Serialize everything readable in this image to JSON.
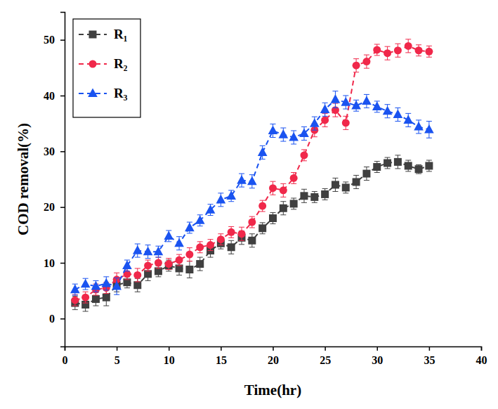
{
  "chart_data": {
    "type": "line",
    "x_label": "Time(hr)",
    "y_label": "COD removal(%)",
    "x": [
      1,
      2,
      3,
      4,
      5,
      6,
      7,
      8,
      9,
      10,
      11,
      12,
      13,
      14,
      15,
      16,
      17,
      18,
      19,
      20,
      21,
      22,
      23,
      24,
      25,
      26,
      27,
      28,
      29,
      30,
      31,
      32,
      33,
      34,
      35
    ],
    "xlim": [
      0,
      40
    ],
    "xticks": [
      0,
      5,
      10,
      15,
      20,
      25,
      30,
      35,
      40
    ],
    "ylim": [
      -5,
      55
    ],
    "yticks": [
      0,
      10,
      20,
      30,
      40,
      50
    ],
    "grid": false,
    "legend": "upper left",
    "series": [
      {
        "name": "R₁",
        "color": "#404040",
        "marker": "square",
        "line_style": "dashed",
        "values": [
          2.8,
          2.5,
          3.5,
          3.8,
          6.0,
          6.5,
          6.0,
          8.0,
          8.5,
          9.5,
          9.0,
          8.8,
          9.8,
          12.2,
          13.5,
          12.8,
          14.5,
          14.0,
          16.2,
          18.0,
          19.8,
          20.6,
          22.0,
          21.8,
          22.3,
          24.0,
          23.5,
          24.5,
          26.0,
          27.2,
          27.9,
          28.1,
          27.4,
          26.8,
          27.4
        ],
        "errors": [
          1.2,
          1.2,
          1.2,
          1.5,
          1.2,
          1.0,
          1.2,
          1.2,
          1.0,
          1.0,
          1.2,
          1.5,
          1.2,
          1.2,
          1.0,
          1.2,
          1.2,
          1.2,
          1.0,
          1.0,
          1.2,
          1.0,
          1.2,
          1.0,
          1.0,
          1.2,
          1.0,
          1.2,
          1.2,
          1.0,
          1.0,
          1.2,
          1.0,
          0.8,
          1.0
        ]
      },
      {
        "name": "R₂",
        "color": "#f0284a",
        "marker": "circle",
        "line_style": "dashed",
        "values": [
          3.3,
          3.8,
          5.2,
          5.5,
          7.0,
          8.0,
          7.8,
          9.5,
          10.0,
          9.8,
          10.5,
          11.5,
          12.8,
          13.2,
          14.2,
          15.5,
          15.2,
          17.3,
          20.2,
          23.4,
          23.0,
          25.2,
          29.3,
          33.8,
          35.6,
          37.4,
          35.1,
          45.4,
          46.1,
          48.2,
          47.6,
          48.1,
          48.9,
          48.1,
          47.9
        ],
        "errors": [
          1.0,
          1.0,
          1.0,
          1.0,
          1.2,
          1.0,
          1.2,
          1.0,
          1.0,
          1.0,
          1.0,
          1.2,
          1.0,
          1.0,
          1.0,
          1.0,
          1.2,
          1.0,
          1.0,
          1.2,
          1.2,
          1.0,
          1.0,
          1.2,
          1.2,
          1.2,
          1.2,
          1.2,
          1.2,
          1.0,
          1.2,
          1.2,
          1.2,
          1.0,
          1.0
        ]
      },
      {
        "name": "R₃",
        "color": "#1a53f0",
        "marker": "triangle",
        "line_style": "dashed",
        "values": [
          5.2,
          6.2,
          5.8,
          6.3,
          5.8,
          9.5,
          12.2,
          12.0,
          12.0,
          14.8,
          13.5,
          16.3,
          17.6,
          19.5,
          21.3,
          22.0,
          24.8,
          24.6,
          29.8,
          33.7,
          33.0,
          32.5,
          33.2,
          35.0,
          37.5,
          39.3,
          38.8,
          38.2,
          39.0,
          38.0,
          37.2,
          36.6,
          35.6,
          34.4,
          33.9
        ],
        "errors": [
          1.0,
          1.0,
          1.0,
          1.2,
          1.5,
          1.0,
          1.2,
          1.2,
          1.0,
          1.0,
          1.2,
          1.0,
          1.0,
          1.0,
          1.2,
          1.0,
          1.2,
          1.2,
          1.2,
          1.2,
          1.2,
          1.2,
          1.2,
          1.2,
          1.2,
          1.5,
          1.2,
          1.0,
          1.2,
          1.0,
          1.2,
          1.2,
          1.2,
          1.2,
          1.5
        ]
      }
    ]
  }
}
